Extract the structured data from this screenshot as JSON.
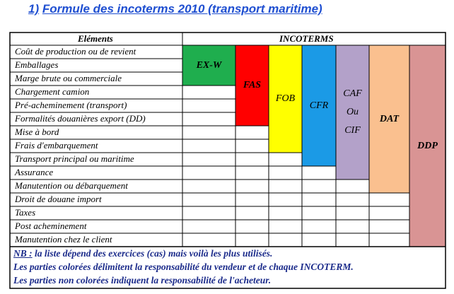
{
  "title": {
    "number": "1)",
    "text": "Formule des incoterms 2010 (transport maritime)"
  },
  "table": {
    "header_elements": "Eléments",
    "header_incoterms": "INCOTERMS",
    "rows": [
      "Coût de production ou de revient",
      "Emballages",
      "Marge brute ou commerciale",
      "Chargement camion",
      "Pré-acheminement (transport)",
      "Formalités douanières export (DD)",
      "Mise à bord",
      "Frais d'embarquement",
      "Transport principal ou maritime",
      "Assurance",
      "Manutention ou débarquement",
      "Droit de douane import",
      "Taxes",
      "Post acheminement",
      "Manutention chez le client"
    ],
    "incoterms": [
      {
        "label": "EX-W",
        "color": "#1fae4e",
        "rows_covered": 3,
        "bold": true
      },
      {
        "label": "FAS",
        "color": "#ff0000",
        "rows_covered": 6,
        "bold": true
      },
      {
        "label": "FOB",
        "color": "#ffff00",
        "rows_covered": 8,
        "bold": false
      },
      {
        "label": "CFR",
        "color": "#1b9ae6",
        "rows_covered": 9,
        "bold": false
      },
      {
        "label_lines": [
          "CAF",
          "Ou",
          "CIF"
        ],
        "color": "#b3a1c9",
        "rows_covered": 10,
        "bold": false
      },
      {
        "label": "DAT",
        "color": "#fac08f",
        "rows_covered": 11,
        "bold": true
      },
      {
        "label": "DDP",
        "color": "#d99494",
        "rows_covered": 15,
        "bold": true
      }
    ]
  },
  "notes": {
    "nb_label": "NB :",
    "line1": "la liste dépend des exercices (cas) mais voilà les plus utilisés.",
    "line2": "Les parties colorées délimitent la responsabilité du vendeur et de chaque INCOTERM.",
    "line3": "Les parties non colorées indiquent la responsabilité de l'acheteur."
  }
}
